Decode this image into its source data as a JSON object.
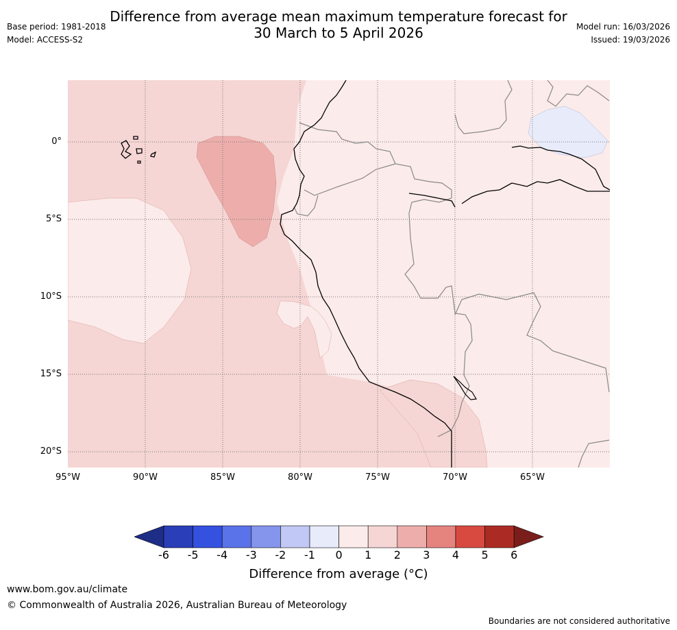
{
  "title": {
    "line1": "Difference from average mean maximum temperature forecast for",
    "line2": "30 March to 5 April 2026"
  },
  "meta": {
    "base_period": "Base period: 1981-2018",
    "model": "Model: ACCESS-S2",
    "model_run": "Model run: 16/03/2026",
    "issued": "Issued: 19/03/2026"
  },
  "map": {
    "lat_labels": [
      "0°",
      "5°S",
      "10°S",
      "15°S",
      "20°S"
    ],
    "lon_labels": [
      "95°W",
      "90°W",
      "85°W",
      "80°W",
      "75°W",
      "70°W",
      "65°W"
    ],
    "colors": {
      "ocean_warm1_2": "#f5d6d4",
      "land_warm0_1": "#fbebea",
      "warm2_3": "#edaeab",
      "cool_m1_0": "#e8ebfa",
      "coast": "#000000",
      "border": "#888888",
      "grid": "#777777"
    }
  },
  "colorbar": {
    "ticks": [
      "-6",
      "-5",
      "-4",
      "-3",
      "-2",
      "-1",
      "0",
      "1",
      "2",
      "3",
      "4",
      "5",
      "6"
    ],
    "colors": [
      "#1e2d85",
      "#2a3eb8",
      "#3451e0",
      "#5b73e8",
      "#8595ec",
      "#c2c8f5",
      "#e8ebfa",
      "#fbebea",
      "#f5d6d4",
      "#edaeab",
      "#e5847f",
      "#d84a40",
      "#ab2b24",
      "#7a1e1b"
    ],
    "label": "Difference from average (°C)"
  },
  "footer": {
    "website": "www.bom.gov.au/climate",
    "copyright": "© Commonwealth of Australia 2026, Australian Bureau of Meteorology",
    "disclaimer": "Boundaries are not considered authoritative"
  }
}
